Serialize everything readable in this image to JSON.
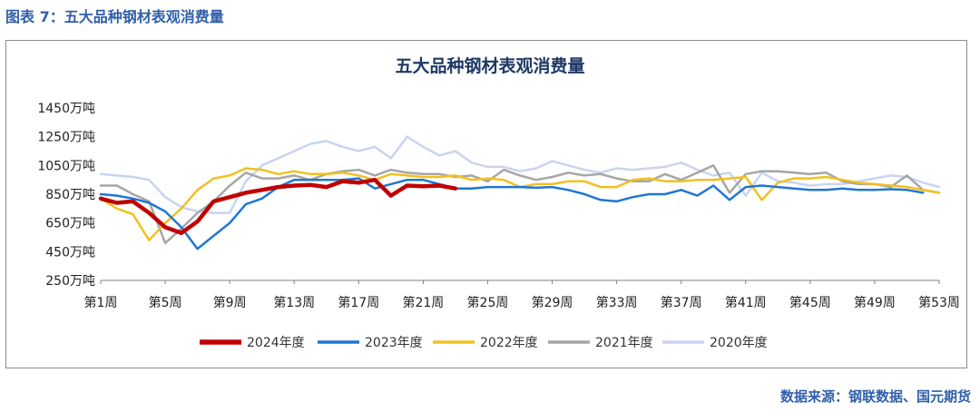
{
  "caption": "图表 7：五大品种钢材表观消费量",
  "source": "数据来源：钢联数据、国元期货",
  "colors": {
    "accent": "#2f5fa8"
  },
  "chart_data": {
    "type": "line",
    "title": "五大品种钢材表观消费量",
    "y_ticks": [
      "1450万吨",
      "1250万吨",
      "1050万吨",
      "850万吨",
      "650万吨",
      "450万吨",
      "250万吨"
    ],
    "ylim": [
      250,
      1450
    ],
    "x_ticks": [
      "第1周",
      "第5周",
      "第9周",
      "第13周",
      "第17周",
      "第21周",
      "第25周",
      "第29周",
      "第33周",
      "第37周",
      "第41周",
      "第45周",
      "第49周",
      "第53周"
    ],
    "xlim": [
      1,
      53
    ],
    "legend_position": "bottom",
    "series": [
      {
        "name": "2024年度",
        "color": "#c00000",
        "width": 4.5,
        "values": [
          820,
          790,
          800,
          720,
          620,
          580,
          660,
          800,
          830,
          860,
          880,
          900,
          910,
          915,
          900,
          940,
          930,
          950,
          840,
          910,
          905,
          910,
          890
        ]
      },
      {
        "name": "2023年度",
        "color": "#1f77d4",
        "width": 2.5,
        "values": [
          850,
          840,
          820,
          790,
          730,
          620,
          470,
          560,
          650,
          780,
          820,
          900,
          950,
          950,
          950,
          950,
          960,
          890,
          920,
          950,
          950,
          920,
          890,
          890,
          900,
          900,
          900,
          895,
          900,
          880,
          850,
          810,
          800,
          830,
          850,
          850,
          880,
          840,
          910,
          810,
          900,
          910,
          900,
          890,
          880,
          880,
          890,
          880,
          880,
          885,
          880,
          860
        ]
      },
      {
        "name": "2022年度",
        "color": "#f2c01f",
        "width": 2.5,
        "values": [
          820,
          750,
          710,
          530,
          650,
          750,
          880,
          960,
          980,
          1030,
          1020,
          990,
          1010,
          990,
          990,
          1000,
          980,
          950,
          990,
          980,
          970,
          970,
          980,
          950,
          960,
          950,
          900,
          920,
          920,
          940,
          940,
          900,
          900,
          950,
          960,
          940,
          940,
          950,
          950,
          960,
          970,
          810,
          930,
          960,
          960,
          970,
          950,
          930,
          920,
          910,
          900,
          880,
          860
        ]
      },
      {
        "name": "2021年度",
        "color": "#a6a6a6",
        "width": 2.5,
        "values": [
          910,
          910,
          850,
          800,
          510,
          610,
          720,
          800,
          910,
          1000,
          960,
          960,
          980,
          950,
          990,
          1010,
          1020,
          980,
          1020,
          1000,
          990,
          990,
          970,
          980,
          940,
          1020,
          980,
          950,
          970,
          1000,
          980,
          990,
          960,
          940,
          940,
          990,
          950,
          1000,
          1050,
          860,
          990,
          1010,
          1010,
          1000,
          990,
          1000,
          940,
          920,
          920,
          900,
          980,
          880,
          860
        ]
      },
      {
        "name": "2020年度",
        "color": "#c9d4f0",
        "width": 2.5,
        "values": [
          990,
          980,
          970,
          950,
          830,
          760,
          730,
          720,
          720,
          940,
          1050,
          1100,
          1150,
          1200,
          1220,
          1180,
          1150,
          1180,
          1100,
          1250,
          1180,
          1120,
          1150,
          1070,
          1040,
          1040,
          1010,
          1030,
          1080,
          1050,
          1020,
          1000,
          1030,
          1020,
          1030,
          1040,
          1070,
          1020,
          980,
          1000,
          840,
          1000,
          940,
          930,
          910,
          920,
          920,
          940,
          960,
          980,
          970,
          930,
          900
        ]
      }
    ]
  }
}
